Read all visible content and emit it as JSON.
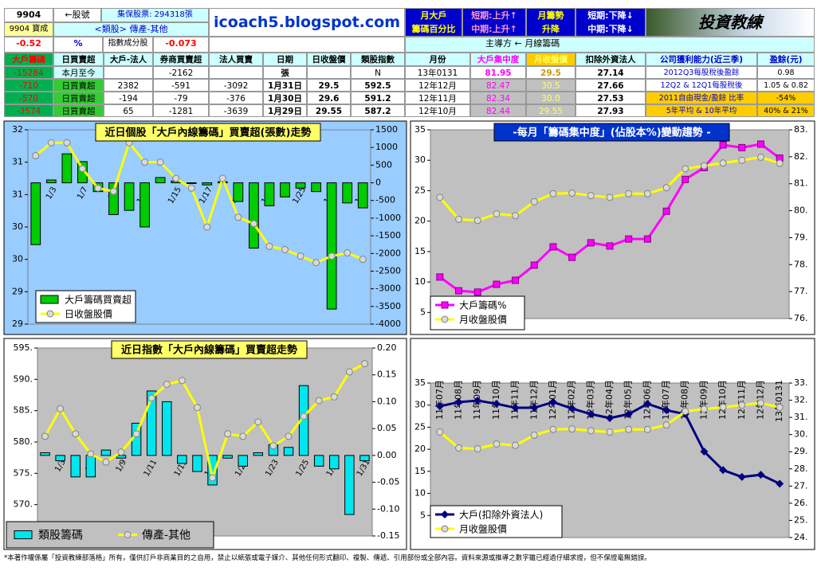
{
  "header": {
    "stock_code": "9904",
    "code_note": "←股號",
    "shares": "集保股票: 294318張",
    "stock_name": "9904 寶成",
    "sector": "<類股> 傳產-其他",
    "change": "-0.52",
    "pct": "%",
    "index_member": "指數成分股",
    "index_change": "-0.073",
    "site": "icoach5.blogspot.com",
    "month_major": [
      "月大戶",
      "籌碼百分比"
    ],
    "trend_up": [
      "短期:上升↑",
      "中期:上升↑"
    ],
    "month_trend": [
      "月籌勢",
      "升降"
    ],
    "trend_down": [
      "短期:下降↓",
      "中期:下降↓"
    ],
    "logo": "投資教練",
    "leader": "主導方 ← 月線籌碼"
  },
  "table": {
    "columns": [
      "大戶籌碼",
      "日買賣超",
      "大戶-法人",
      "券商買賣超",
      "法人買賣",
      "日期",
      "日收盤價",
      "類股指數",
      "月份",
      "大戶集中度",
      "月收盤價",
      "扣除外資法人",
      "公司獲利能力(近三季)",
      "盈餘(元)"
    ],
    "rows": [
      [
        "-15284",
        "本月至今",
        "",
        "-2162",
        "",
        "張",
        "",
        "N",
        "13年0131",
        "81.95",
        "29.5",
        "27.14",
        "2012Q3每股稅後盈餘",
        "0.98"
      ],
      [
        "-710",
        "日買賣超",
        "2382",
        "-591",
        "-3092",
        "1月31日",
        "29.5",
        "592.5",
        "12年12月",
        "82.47",
        "30.5",
        "27.66",
        "12Q2 & 12Q1每股稅後",
        "1.05 & 0.82"
      ],
      [
        "-570",
        "日買賣超",
        "-194",
        "-79",
        "-376",
        "1月30日",
        "29.6",
        "591.2",
        "12年11月",
        "82.34",
        "30.0",
        "27.53",
        "2011自由現金/盈餘 比率",
        "-54%"
      ],
      [
        "-3574",
        "日買賣超",
        "65",
        "-1281",
        "-3639",
        "1月29日",
        "29.55",
        "587.2",
        "12年10月",
        "82.44",
        "29.55",
        "27.93",
        "5年平均 & 10年平均",
        "40% & 21%"
      ]
    ]
  },
  "chart_data": [
    {
      "type": "combo",
      "title": "近日個股「大戶內線籌碼」買賣超(張數)走勢",
      "categories": [
        null,
        "1/3",
        null,
        "1/7",
        null,
        "1/9",
        null,
        "1/11",
        null,
        "1/15",
        null,
        "1/17",
        null,
        "1/21",
        null,
        "1/23",
        null,
        "1/25",
        null,
        "1/29",
        null,
        "1/31"
      ],
      "ylim": [
        28.5,
        31.5
      ],
      "yticks": [
        {
          "value": 28.5,
          "label": "29"
        },
        {
          "value": 29,
          "label": "29"
        },
        {
          "value": 29.5,
          "label": "30"
        },
        {
          "value": 30,
          "label": "30"
        },
        {
          "value": 30.5,
          "label": "31"
        },
        {
          "value": 31,
          "label": "31"
        },
        {
          "value": 31.5,
          "label": "32"
        }
      ],
      "y2lim": [
        -4000,
        1500
      ],
      "y2ticks": [
        1500,
        1000,
        500,
        0,
        -500,
        -1000,
        -1500,
        -2000,
        -2500,
        -3000,
        -3500,
        -4000
      ],
      "legend": "lower left",
      "series": [
        {
          "name": "大戶籌碼買賣超",
          "type": "bar",
          "axis": "y2",
          "color": "#00cc00",
          "values": [
            -1750,
            80,
            820,
            600,
            -250,
            -900,
            -780,
            -1250,
            150,
            50,
            -20,
            -60,
            30,
            -530,
            -1850,
            -650,
            -400,
            -150,
            -250,
            -3574,
            -570,
            -710
          ]
        },
        {
          "name": "日收盤股價",
          "type": "line",
          "marker": "circle",
          "color": "#ffff00",
          "values": [
            31.1,
            31.3,
            31.3,
            30.9,
            30.6,
            30.55,
            31.3,
            31.0,
            31.0,
            30.75,
            30.6,
            30.0,
            30.75,
            30.15,
            30.05,
            29.7,
            29.65,
            29.55,
            29.45,
            29.55,
            29.6,
            29.5
          ]
        }
      ]
    },
    {
      "type": "combo",
      "title": "-每月「籌碼集中度」(佔股本%)變動趨勢 -",
      "ylim": [
        4,
        35
      ],
      "yticks": [
        5,
        10,
        15,
        20,
        25,
        30,
        35
      ],
      "y2lim": [
        76,
        83
      ],
      "y2ticks": [
        {
          "value": 76,
          "label": "76."
        },
        {
          "value": 77,
          "label": "77."
        },
        {
          "value": 78,
          "label": "78."
        },
        {
          "value": 79,
          "label": "79."
        },
        {
          "value": 80,
          "label": "80."
        },
        {
          "value": 81,
          "label": "81."
        },
        {
          "value": 82,
          "label": "82."
        },
        {
          "value": 83,
          "label": "83."
        }
      ],
      "legend": "lower left",
      "series": [
        {
          "name": "大戶籌碼%",
          "type": "line",
          "marker": "square",
          "axis": "y2",
          "color": "#ff00ff",
          "values": [
            77.54,
            77.03,
            76.98,
            77.27,
            77.42,
            77.98,
            78.66,
            78.27,
            78.81,
            78.69,
            78.95,
            78.95,
            79.98,
            81.16,
            81.6,
            82.44,
            82.34,
            82.47,
            81.95
          ]
        },
        {
          "name": "月收盤股價",
          "type": "line",
          "marker": "circle",
          "color": "#ffff00",
          "values": [
            23.9,
            20.3,
            20.1,
            21.2,
            20.9,
            23.2,
            24.5,
            24.6,
            24.2,
            23.9,
            24.5,
            24.5,
            25.5,
            28.6,
            29.1,
            29.55,
            30.0,
            30.5,
            29.5
          ]
        }
      ]
    },
    {
      "type": "combo",
      "title": "近日指數「大戶內線籌碼」買賣超走勢",
      "categories": [
        null,
        "1/3",
        null,
        "1/7",
        null,
        "1/9",
        null,
        "1/11",
        null,
        "1/15",
        null,
        "1/17",
        null,
        "1/21",
        null,
        "1/23",
        null,
        "1/25",
        null,
        "1/29",
        null,
        "1/31"
      ],
      "ylim": [
        565,
        595
      ],
      "yticks": [
        {
          "value": 570,
          "label": "570."
        },
        {
          "value": 575,
          "label": "575."
        },
        {
          "value": 580,
          "label": "580."
        },
        {
          "value": 585,
          "label": "585."
        },
        {
          "value": 590,
          "label": "590."
        },
        {
          "value": 595,
          "label": "595."
        }
      ],
      "y2lim": [
        -0.15,
        0.2
      ],
      "y2ticks": [
        {
          "value": 0.2,
          "label": "0.20"
        },
        0.15,
        {
          "value": 0.1,
          "label": "0.10"
        },
        0.05,
        {
          "value": 0,
          "label": "0.00"
        },
        -0.05,
        {
          "value": -0.1,
          "label": "-0.10"
        },
        -0.15
      ],
      "legend": "bottom",
      "series": [
        {
          "name": "類股籌碼",
          "type": "bar",
          "axis": "y2",
          "color": "#00e5ee",
          "values": [
            0.005,
            -0.01,
            -0.04,
            -0.04,
            0.01,
            -0.005,
            0.06,
            0.12,
            0.1,
            -0.015,
            -0.03,
            -0.055,
            -0.005,
            -0.02,
            0.005,
            0.02,
            0.015,
            0.13,
            -0.02,
            -0.025,
            -0.11,
            -0.01
          ]
        },
        {
          "name": "傳產-其他",
          "type": "line",
          "marker": "circle",
          "color": "#ffff00",
          "values": [
            580.9,
            585.3,
            581.3,
            578.1,
            576.8,
            578.4,
            581.3,
            587.0,
            589.2,
            589.8,
            585.5,
            574.3,
            581.3,
            580.9,
            583.2,
            579.4,
            580.9,
            584.1,
            586.6,
            587.2,
            591.2,
            592.5
          ]
        }
      ]
    },
    {
      "type": "combo",
      "categories": [
        "11年07月",
        "11年08月",
        "11年09月",
        "11年10月",
        "11年11月",
        "11年12月",
        "12年01月",
        "12年02月",
        "12年03月",
        "12年04月",
        "12年05月",
        "12年06月",
        "12年07月",
        "12年08月",
        "12年09月",
        "12年10月",
        "12年11月",
        "12年12月",
        "13年0131"
      ],
      "ylim": [
        0,
        35
      ],
      "yticks": [
        5,
        10,
        15,
        20,
        25,
        30,
        35
      ],
      "y2lim": [
        24,
        33
      ],
      "y2ticks": [
        {
          "value": 24,
          "label": "24."
        },
        {
          "value": 25,
          "label": "25."
        },
        {
          "value": 26,
          "label": "26."
        },
        {
          "value": 27,
          "label": "27."
        },
        {
          "value": 28,
          "label": "28."
        },
        {
          "value": 29,
          "label": "29."
        },
        {
          "value": 30,
          "label": "30."
        },
        {
          "value": 31,
          "label": "31."
        },
        {
          "value": 32,
          "label": "32."
        },
        {
          "value": 33,
          "label": "33."
        }
      ],
      "legend": "lower left",
      "series": [
        {
          "name": "大戶(扣除外資法人)",
          "type": "line",
          "marker": "diamond",
          "axis": "y2",
          "color": "#000080",
          "values": [
            31.65,
            31.89,
            31.98,
            31.79,
            31.56,
            31.56,
            31.89,
            31.52,
            31.19,
            30.96,
            31.19,
            31.79,
            31.42,
            31.19,
            29.01,
            27.93,
            27.53,
            27.66,
            27.14
          ]
        },
        {
          "name": "月收盤股價",
          "type": "line",
          "marker": "circle",
          "color": "#ffff00",
          "values": [
            23.9,
            20.3,
            20.1,
            21.2,
            20.9,
            23.2,
            24.5,
            24.6,
            24.2,
            23.9,
            24.5,
            24.5,
            25.5,
            28.6,
            29.1,
            29.55,
            30.0,
            30.5,
            29.5
          ]
        }
      ]
    }
  ],
  "footer": "*本著作權係屬「投資教練部落格」所有，僅供訂戶非商業目的之自用，禁止以紙張或電子媒介、其他任何形式翻印、複製、傳遞、引用部份或全部內容。資料來源或推導之數字雖已經過仔細求證，但不保證毫無錯誤。"
}
